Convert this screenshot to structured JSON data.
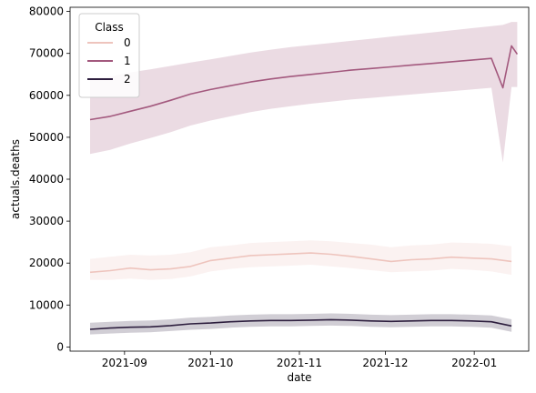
{
  "chart_data": {
    "type": "line",
    "xlabel": "date",
    "ylabel": "actuals.deaths",
    "x_range": [
      "2021-08-13",
      "2022-01-20"
    ],
    "ylim": [
      -1000,
      81000
    ],
    "x_ticks": [
      {
        "date": "2021-09-01",
        "label": "2021-09"
      },
      {
        "date": "2021-10-01",
        "label": "2021-10"
      },
      {
        "date": "2021-11-01",
        "label": "2021-11"
      },
      {
        "date": "2021-12-01",
        "label": "2021-12"
      },
      {
        "date": "2022-01-01",
        "label": "2022-01"
      }
    ],
    "y_ticks": [
      0,
      10000,
      20000,
      30000,
      40000,
      50000,
      60000,
      70000,
      80000
    ],
    "grid": false,
    "legend": {
      "title": "Class",
      "placement": "top-left"
    },
    "series": [
      {
        "name": "0",
        "color": "#eec4bd",
        "band_color": "#eec4bd",
        "points": [
          [
            "2021-08-20",
            17800,
            16000,
            21000
          ],
          [
            "2021-08-27",
            18200,
            16000,
            21500
          ],
          [
            "2021-09-03",
            18800,
            16300,
            22000
          ],
          [
            "2021-09-10",
            18400,
            16000,
            21800
          ],
          [
            "2021-09-17",
            18600,
            16200,
            22000
          ],
          [
            "2021-09-24",
            19200,
            16800,
            22600
          ],
          [
            "2021-10-01",
            20600,
            18000,
            23800
          ],
          [
            "2021-10-08",
            21200,
            18600,
            24200
          ],
          [
            "2021-10-15",
            21800,
            19000,
            24800
          ],
          [
            "2021-10-22",
            22000,
            19200,
            25000
          ],
          [
            "2021-10-29",
            22200,
            19400,
            25200
          ],
          [
            "2021-11-05",
            22400,
            19600,
            25400
          ],
          [
            "2021-11-12",
            22100,
            19200,
            25200
          ],
          [
            "2021-11-19",
            21600,
            18800,
            24800
          ],
          [
            "2021-11-26",
            21000,
            18300,
            24400
          ],
          [
            "2021-12-03",
            20400,
            17800,
            23800
          ],
          [
            "2021-12-10",
            20800,
            18000,
            24200
          ],
          [
            "2021-12-17",
            21000,
            18200,
            24400
          ],
          [
            "2021-12-24",
            21400,
            18600,
            24900
          ],
          [
            "2021-12-31",
            21200,
            18400,
            24800
          ],
          [
            "2022-01-07",
            21000,
            18000,
            24600
          ],
          [
            "2022-01-14",
            20400,
            17200,
            24000
          ]
        ]
      },
      {
        "name": "1",
        "color": "#a3597e",
        "band_color": "#a3597e",
        "points": [
          [
            "2021-08-20",
            54200,
            46000,
            64000
          ],
          [
            "2021-08-27",
            55000,
            47000,
            64500
          ],
          [
            "2021-09-03",
            56200,
            48500,
            65500
          ],
          [
            "2021-09-10",
            57400,
            49800,
            66200
          ],
          [
            "2021-09-17",
            58800,
            51200,
            67000
          ],
          [
            "2021-09-24",
            60300,
            52800,
            67800
          ],
          [
            "2021-10-01",
            61400,
            54000,
            68600
          ],
          [
            "2021-10-08",
            62300,
            55000,
            69400
          ],
          [
            "2021-10-15",
            63200,
            56000,
            70200
          ],
          [
            "2021-10-22",
            63900,
            56800,
            70900
          ],
          [
            "2021-10-29",
            64500,
            57400,
            71500
          ],
          [
            "2021-11-05",
            65000,
            58000,
            72000
          ],
          [
            "2021-11-12",
            65500,
            58500,
            72500
          ],
          [
            "2021-11-19",
            66000,
            59000,
            73000
          ],
          [
            "2021-11-26",
            66400,
            59400,
            73500
          ],
          [
            "2021-12-03",
            66800,
            59800,
            74000
          ],
          [
            "2021-12-10",
            67200,
            60200,
            74500
          ],
          [
            "2021-12-17",
            67600,
            60600,
            75000
          ],
          [
            "2021-12-24",
            68000,
            61000,
            75500
          ],
          [
            "2021-12-31",
            68400,
            61400,
            76000
          ],
          [
            "2022-01-07",
            68800,
            61800,
            76500
          ],
          [
            "2022-01-11",
            61800,
            44000,
            76800
          ],
          [
            "2022-01-14",
            71800,
            62000,
            77500
          ],
          [
            "2022-01-16",
            69800,
            62000,
            77500
          ]
        ]
      },
      {
        "name": "2",
        "color": "#2d1e3e",
        "band_color": "#2d1e3e",
        "points": [
          [
            "2021-08-20",
            4200,
            3000,
            5800
          ],
          [
            "2021-08-27",
            4500,
            3200,
            6000
          ],
          [
            "2021-09-03",
            4700,
            3400,
            6200
          ],
          [
            "2021-09-10",
            4800,
            3500,
            6300
          ],
          [
            "2021-09-17",
            5100,
            3800,
            6600
          ],
          [
            "2021-09-24",
            5500,
            4100,
            7000
          ],
          [
            "2021-10-01",
            5700,
            4300,
            7200
          ],
          [
            "2021-10-08",
            6000,
            4600,
            7500
          ],
          [
            "2021-10-15",
            6200,
            4800,
            7700
          ],
          [
            "2021-10-22",
            6300,
            4900,
            7800
          ],
          [
            "2021-10-29",
            6300,
            4900,
            7800
          ],
          [
            "2021-11-05",
            6400,
            5000,
            7900
          ],
          [
            "2021-11-12",
            6500,
            5100,
            8000
          ],
          [
            "2021-11-19",
            6400,
            5000,
            7900
          ],
          [
            "2021-11-26",
            6200,
            4800,
            7700
          ],
          [
            "2021-12-03",
            6100,
            4700,
            7600
          ],
          [
            "2021-12-10",
            6200,
            4800,
            7700
          ],
          [
            "2021-12-17",
            6300,
            4900,
            7800
          ],
          [
            "2021-12-24",
            6300,
            4900,
            7800
          ],
          [
            "2021-12-31",
            6200,
            4800,
            7700
          ],
          [
            "2022-01-07",
            6000,
            4600,
            7500
          ],
          [
            "2022-01-14",
            5000,
            3600,
            6600
          ]
        ]
      }
    ]
  }
}
